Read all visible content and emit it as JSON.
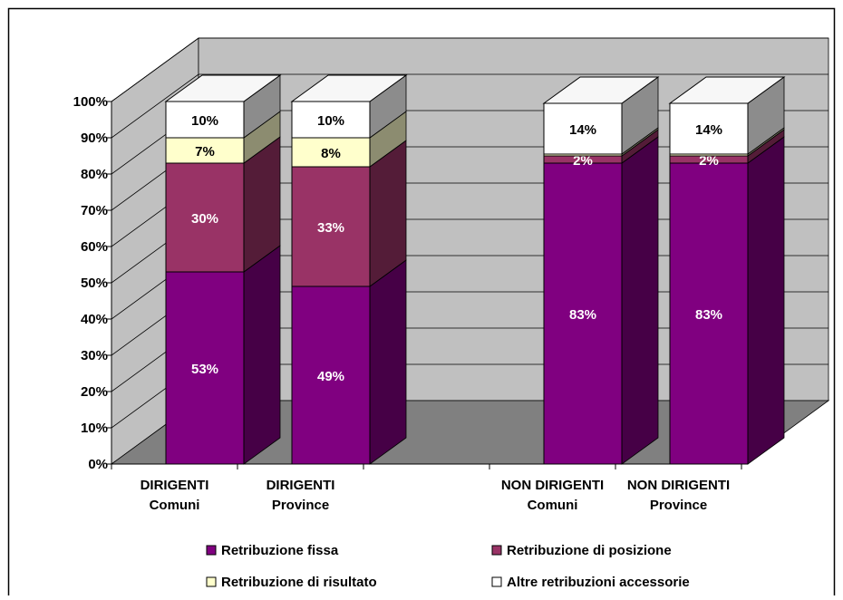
{
  "chart_data": {
    "type": "bar",
    "stacked": true,
    "three_d": true,
    "categories": [
      [
        "DIRIGENTI",
        "Comuni"
      ],
      [
        "DIRIGENTI",
        "Province"
      ],
      [
        "",
        ""
      ],
      [
        "NON DIRIGENTI",
        "Comuni"
      ],
      [
        "NON DIRIGENTI",
        "Province"
      ]
    ],
    "series": [
      {
        "name": "Retribuzione fissa",
        "values": [
          53,
          49,
          null,
          83,
          83
        ],
        "labels": [
          "53%",
          "49%",
          "",
          "83%",
          "83%"
        ],
        "color": "#800080",
        "label_color": "#ffffff"
      },
      {
        "name": "Retribuzione di posizione",
        "values": [
          30,
          33,
          null,
          2,
          2
        ],
        "labels": [
          "30%",
          "33%",
          "",
          "2%",
          "2%"
        ],
        "color": "#993366",
        "label_color": "#ffffff"
      },
      {
        "name": "Retribuzione di risultato",
        "values": [
          7,
          8,
          null,
          0.5,
          0.5
        ],
        "labels": [
          "7%",
          "8%",
          "",
          "",
          ""
        ],
        "color": "#ffffcc",
        "label_color": "#000000"
      },
      {
        "name": "Altre retribuzioni accessorie",
        "values": [
          10,
          10,
          null,
          14,
          14
        ],
        "labels": [
          "10%",
          "10%",
          "",
          "14%",
          "14%"
        ],
        "color": "#ffffff",
        "label_color": "#000000"
      }
    ],
    "y_ticks": [
      "0%",
      "10%",
      "20%",
      "30%",
      "40%",
      "50%",
      "60%",
      "70%",
      "80%",
      "90%",
      "100%"
    ],
    "ylim": [
      0,
      100
    ],
    "grid": true,
    "legend_position": "bottom",
    "colors": {
      "wall": "#c0c0c0",
      "floor": "#808080",
      "gridline": "#000000"
    }
  }
}
